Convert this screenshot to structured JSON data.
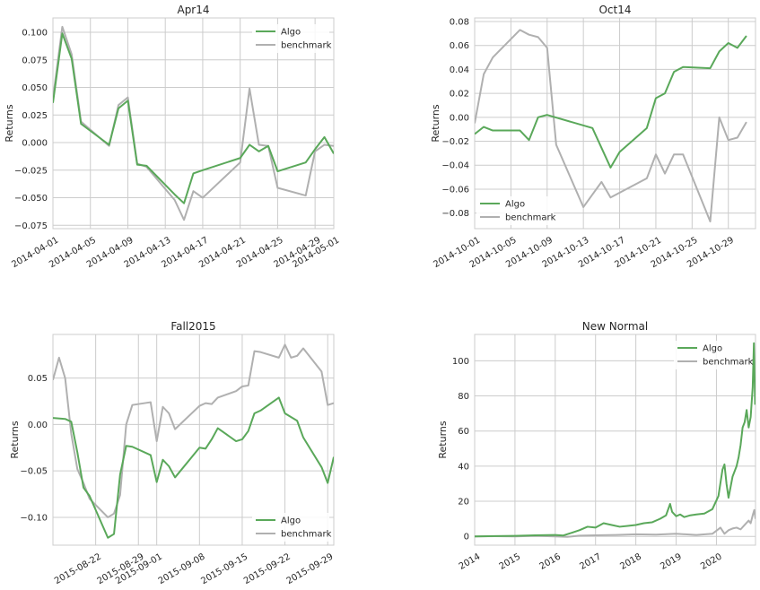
{
  "colors": {
    "algo": "#5aa85a",
    "benchmark": "#b0b0b0",
    "grid": "#cccccc"
  },
  "chart_data": [
    {
      "type": "line",
      "title": "Apr14",
      "ylabel": "Returns",
      "xlabel": "",
      "x_is_date": true,
      "xlim": [
        "2014-04-01",
        "2014-05-01"
      ],
      "ylim": [
        -0.078,
        0.113
      ],
      "x_ticks": [
        "2014-04-01",
        "2014-04-05",
        "2014-04-09",
        "2014-04-13",
        "2014-04-17",
        "2014-04-21",
        "2014-04-25",
        "2014-04-29",
        "2014-05-01"
      ],
      "y_ticks": [
        0.1,
        0.075,
        0.05,
        0.025,
        0.0,
        -0.025,
        -0.05,
        -0.075
      ],
      "y_tick_labels": [
        "0.100",
        "0.075",
        "0.050",
        "0.025",
        "0.000",
        "−0.025",
        "−0.050",
        "−0.075"
      ],
      "legend_position": "top-right",
      "series": [
        {
          "name": "Algo",
          "x": [
            "2014-04-01",
            "2014-04-02",
            "2014-04-03",
            "2014-04-04",
            "2014-04-07",
            "2014-04-08",
            "2014-04-09",
            "2014-04-10",
            "2014-04-11",
            "2014-04-14",
            "2014-04-15",
            "2014-04-16",
            "2014-04-17",
            "2014-04-21",
            "2014-04-22",
            "2014-04-23",
            "2014-04-24",
            "2014-04-25",
            "2014-04-28",
            "2014-04-29",
            "2014-04-30",
            "2014-05-01"
          ],
          "y": [
            0.036,
            0.099,
            0.076,
            0.017,
            -0.002,
            0.031,
            0.038,
            -0.02,
            -0.021,
            -0.047,
            -0.055,
            -0.028,
            -0.025,
            -0.014,
            -0.002,
            -0.008,
            -0.003,
            -0.026,
            -0.018,
            -0.006,
            0.005,
            -0.01
          ]
        },
        {
          "name": "benchmark",
          "x": [
            "2014-04-01",
            "2014-04-02",
            "2014-04-03",
            "2014-04-04",
            "2014-04-07",
            "2014-04-08",
            "2014-04-09",
            "2014-04-10",
            "2014-04-11",
            "2014-04-14",
            "2014-04-15",
            "2014-04-16",
            "2014-04-17",
            "2014-04-21",
            "2014-04-22",
            "2014-04-23",
            "2014-04-24",
            "2014-04-25",
            "2014-04-28",
            "2014-04-29",
            "2014-04-30",
            "2014-05-01"
          ],
          "y": [
            0.04,
            0.105,
            0.08,
            0.019,
            -0.003,
            0.034,
            0.041,
            -0.019,
            -0.022,
            -0.052,
            -0.07,
            -0.044,
            -0.05,
            -0.018,
            0.049,
            -0.002,
            -0.003,
            -0.041,
            -0.048,
            -0.008,
            -0.002,
            -0.003
          ]
        }
      ]
    },
    {
      "type": "line",
      "title": "Oct14",
      "ylabel": "Returns",
      "xlabel": "",
      "x_is_date": true,
      "xlim": [
        "2014-10-01",
        "2014-11-01"
      ],
      "ylim": [
        -0.093,
        0.083
      ],
      "x_ticks": [
        "2014-10-01",
        "2014-10-05",
        "2014-10-09",
        "2014-10-13",
        "2014-10-17",
        "2014-10-21",
        "2014-10-25",
        "2014-10-29"
      ],
      "y_ticks": [
        0.08,
        0.06,
        0.04,
        0.02,
        0.0,
        -0.02,
        -0.04,
        -0.06,
        -0.08
      ],
      "y_tick_labels": [
        "0.08",
        "0.06",
        "0.04",
        "0.02",
        "0.00",
        "−0.02",
        "−0.04",
        "−0.06",
        "−0.08"
      ],
      "legend_position": "bottom-left",
      "series": [
        {
          "name": "Algo",
          "x": [
            "2014-10-01",
            "2014-10-02",
            "2014-10-03",
            "2014-10-06",
            "2014-10-07",
            "2014-10-08",
            "2014-10-09",
            "2014-10-14",
            "2014-10-16",
            "2014-10-17",
            "2014-10-20",
            "2014-10-21",
            "2014-10-22",
            "2014-10-23",
            "2014-10-24",
            "2014-10-27",
            "2014-10-28",
            "2014-10-29",
            "2014-10-30",
            "2014-10-31"
          ],
          "y": [
            -0.014,
            -0.008,
            -0.011,
            -0.011,
            -0.019,
            0.0,
            0.002,
            -0.009,
            -0.042,
            -0.029,
            -0.009,
            0.016,
            0.02,
            0.038,
            0.042,
            0.041,
            0.055,
            0.062,
            0.058,
            0.068
          ]
        },
        {
          "name": "benchmark",
          "x": [
            "2014-10-01",
            "2014-10-02",
            "2014-10-03",
            "2014-10-06",
            "2014-10-07",
            "2014-10-08",
            "2014-10-09",
            "2014-10-10",
            "2014-10-13",
            "2014-10-15",
            "2014-10-16",
            "2014-10-20",
            "2014-10-21",
            "2014-10-22",
            "2014-10-23",
            "2014-10-24",
            "2014-10-27",
            "2014-10-28",
            "2014-10-29",
            "2014-10-30",
            "2014-10-31"
          ],
          "y": [
            -0.005,
            0.036,
            0.05,
            0.073,
            0.069,
            0.067,
            0.058,
            -0.023,
            -0.075,
            -0.054,
            -0.067,
            -0.051,
            -0.031,
            -0.047,
            -0.031,
            -0.031,
            -0.087,
            0.0,
            -0.019,
            -0.017,
            -0.004
          ]
        }
      ]
    },
    {
      "type": "line",
      "title": "Fall2015",
      "ylabel": "Returns",
      "xlabel": "",
      "x_is_date": true,
      "xlim": [
        "2015-08-15",
        "2015-09-30"
      ],
      "ylim": [
        -0.13,
        0.097
      ],
      "x_ticks": [
        "2015-08-22",
        "2015-08-29",
        "2015-09-01",
        "2015-09-08",
        "2015-09-15",
        "2015-09-22",
        "2015-09-29"
      ],
      "y_ticks": [
        0.05,
        0.0,
        -0.05,
        -0.1
      ],
      "y_tick_labels": [
        "0.05",
        "0.00",
        "−0.05",
        "−0.10"
      ],
      "legend_position": "bottom-right",
      "series": [
        {
          "name": "Algo",
          "x": [
            "2015-08-15",
            "2015-08-17",
            "2015-08-18",
            "2015-08-19",
            "2015-08-20",
            "2015-08-21",
            "2015-08-24",
            "2015-08-25",
            "2015-08-26",
            "2015-08-27",
            "2015-08-28",
            "2015-08-31",
            "2015-09-01",
            "2015-09-02",
            "2015-09-03",
            "2015-09-04",
            "2015-09-08",
            "2015-09-09",
            "2015-09-10",
            "2015-09-11",
            "2015-09-14",
            "2015-09-15",
            "2015-09-16",
            "2015-09-17",
            "2015-09-18",
            "2015-09-21",
            "2015-09-22",
            "2015-09-23",
            "2015-09-24",
            "2015-09-25",
            "2015-09-28",
            "2015-09-29",
            "2015-09-30"
          ],
          "y": [
            0.007,
            0.006,
            0.003,
            -0.03,
            -0.068,
            -0.077,
            -0.122,
            -0.118,
            -0.054,
            -0.023,
            -0.024,
            -0.033,
            -0.062,
            -0.038,
            -0.045,
            -0.057,
            -0.025,
            -0.026,
            -0.016,
            -0.004,
            -0.018,
            -0.016,
            -0.007,
            0.012,
            0.015,
            0.029,
            0.012,
            0.008,
            0.004,
            -0.014,
            -0.046,
            -0.063,
            -0.035
          ]
        },
        {
          "name": "benchmark",
          "x": [
            "2015-08-15",
            "2015-08-16",
            "2015-08-17",
            "2015-08-18",
            "2015-08-19",
            "2015-08-20",
            "2015-08-21",
            "2015-08-24",
            "2015-08-25",
            "2015-08-26",
            "2015-08-27",
            "2015-08-28",
            "2015-08-31",
            "2015-09-01",
            "2015-09-02",
            "2015-09-03",
            "2015-09-04",
            "2015-09-08",
            "2015-09-09",
            "2015-09-10",
            "2015-09-11",
            "2015-09-14",
            "2015-09-15",
            "2015-09-16",
            "2015-09-17",
            "2015-09-18",
            "2015-09-21",
            "2015-09-22",
            "2015-09-23",
            "2015-09-24",
            "2015-09-25",
            "2015-09-28",
            "2015-09-29",
            "2015-09-30"
          ],
          "y": [
            0.048,
            0.072,
            0.05,
            -0.01,
            -0.048,
            -0.063,
            -0.08,
            -0.1,
            -0.096,
            -0.076,
            0.0,
            0.021,
            0.024,
            -0.018,
            0.019,
            0.012,
            -0.005,
            0.02,
            0.023,
            0.022,
            0.029,
            0.036,
            0.041,
            0.042,
            0.079,
            0.078,
            0.072,
            0.086,
            0.072,
            0.074,
            0.082,
            0.057,
            0.021,
            0.023
          ]
        }
      ]
    },
    {
      "type": "line",
      "title": "New Normal",
      "ylabel": "Returns",
      "xlabel": "",
      "x_is_year": true,
      "xlim": [
        2014.0,
        2020.97
      ],
      "ylim": [
        -5,
        115
      ],
      "x_ticks": [
        2014,
        2015,
        2016,
        2017,
        2018,
        2019,
        2020
      ],
      "y_ticks": [
        0,
        20,
        40,
        60,
        80,
        100
      ],
      "y_tick_labels": [
        "0",
        "20",
        "40",
        "60",
        "80",
        "100"
      ],
      "legend_position": "top-right",
      "series": [
        {
          "name": "Algo",
          "x": [
            2014.0,
            2014.5,
            2015.0,
            2015.5,
            2016.0,
            2016.2,
            2016.4,
            2016.6,
            2016.8,
            2017.0,
            2017.2,
            2017.4,
            2017.6,
            2017.8,
            2018.0,
            2018.2,
            2018.4,
            2018.6,
            2018.75,
            2018.85,
            2018.9,
            2019.0,
            2019.1,
            2019.2,
            2019.35,
            2019.5,
            2019.7,
            2019.9,
            2020.05,
            2020.15,
            2020.2,
            2020.25,
            2020.3,
            2020.35,
            2020.4,
            2020.5,
            2020.55,
            2020.6,
            2020.65,
            2020.7,
            2020.75,
            2020.8,
            2020.85,
            2020.9,
            2020.93,
            2020.96
          ],
          "y": [
            0,
            0.2,
            0.3,
            0.6,
            0.8,
            0.5,
            2.0,
            3.5,
            5.5,
            5.0,
            7.5,
            6.5,
            5.5,
            6.0,
            6.5,
            7.5,
            8.0,
            10.0,
            12.0,
            18.5,
            14.0,
            11.5,
            12.5,
            11.0,
            12.0,
            12.5,
            13.0,
            15.5,
            23.0,
            38.0,
            41.0,
            30.0,
            22.0,
            28.0,
            34.0,
            40.0,
            45.0,
            52.0,
            62.0,
            65.0,
            72.0,
            62.0,
            68.0,
            85.0,
            110.0,
            75.0
          ]
        },
        {
          "name": "benchmark",
          "x": [
            2014.0,
            2014.5,
            2015.0,
            2015.5,
            2016.0,
            2016.3,
            2016.6,
            2017.0,
            2017.5,
            2018.0,
            2018.5,
            2019.0,
            2019.5,
            2019.9,
            2020.1,
            2020.2,
            2020.3,
            2020.4,
            2020.5,
            2020.6,
            2020.7,
            2020.8,
            2020.85,
            2020.9,
            2020.94,
            2020.97
          ],
          "y": [
            0,
            0.1,
            0.0,
            0.3,
            0.0,
            -0.3,
            0.4,
            0.6,
            0.8,
            1.2,
            1.0,
            1.5,
            0.8,
            1.5,
            5.0,
            1.5,
            3.5,
            4.5,
            5.0,
            4.0,
            6.5,
            9.0,
            7.5,
            12.0,
            15.0,
            10.0
          ]
        }
      ]
    }
  ]
}
